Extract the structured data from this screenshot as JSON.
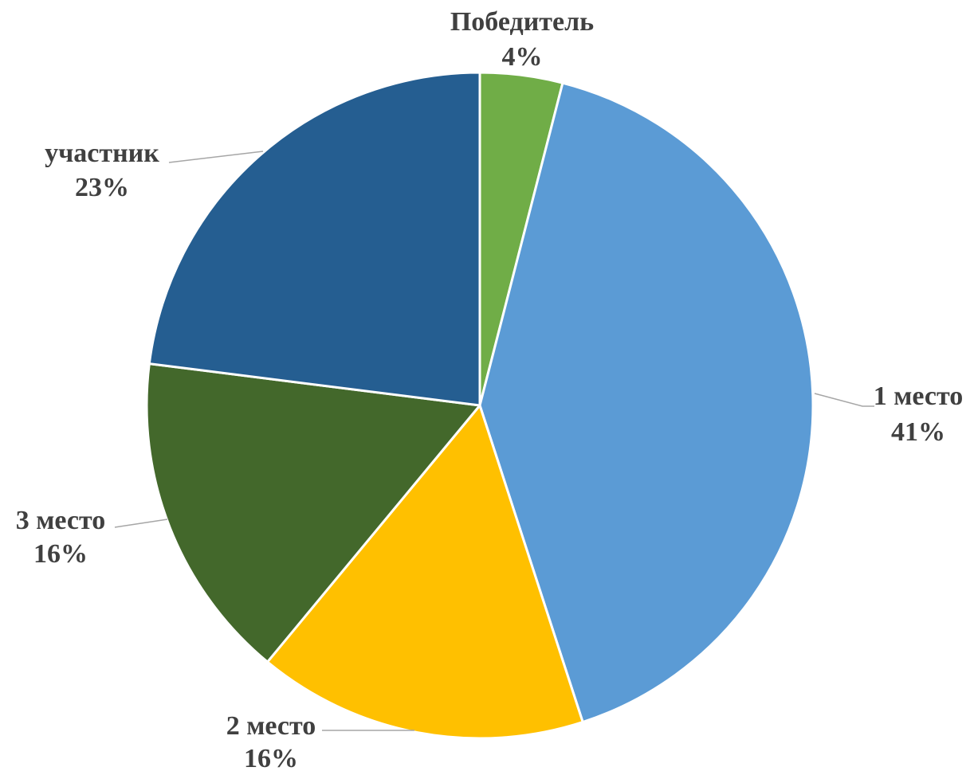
{
  "chart_data": {
    "type": "pie",
    "title": "",
    "slices": [
      {
        "label": "Победитель",
        "value": 4,
        "display": "4%",
        "color": "#70ad47"
      },
      {
        "label": "1 место",
        "value": 41,
        "display": "41%",
        "color": "#5b9bd5"
      },
      {
        "label": "2 место",
        "value": 16,
        "display": "16%",
        "color": "#ffc000"
      },
      {
        "label": "3 место",
        "value": 16,
        "display": "16%",
        "color": "#43682b"
      },
      {
        "label": "участник",
        "value": 23,
        "display": "23%",
        "color": "#255e91"
      }
    ],
    "legend": "none"
  }
}
